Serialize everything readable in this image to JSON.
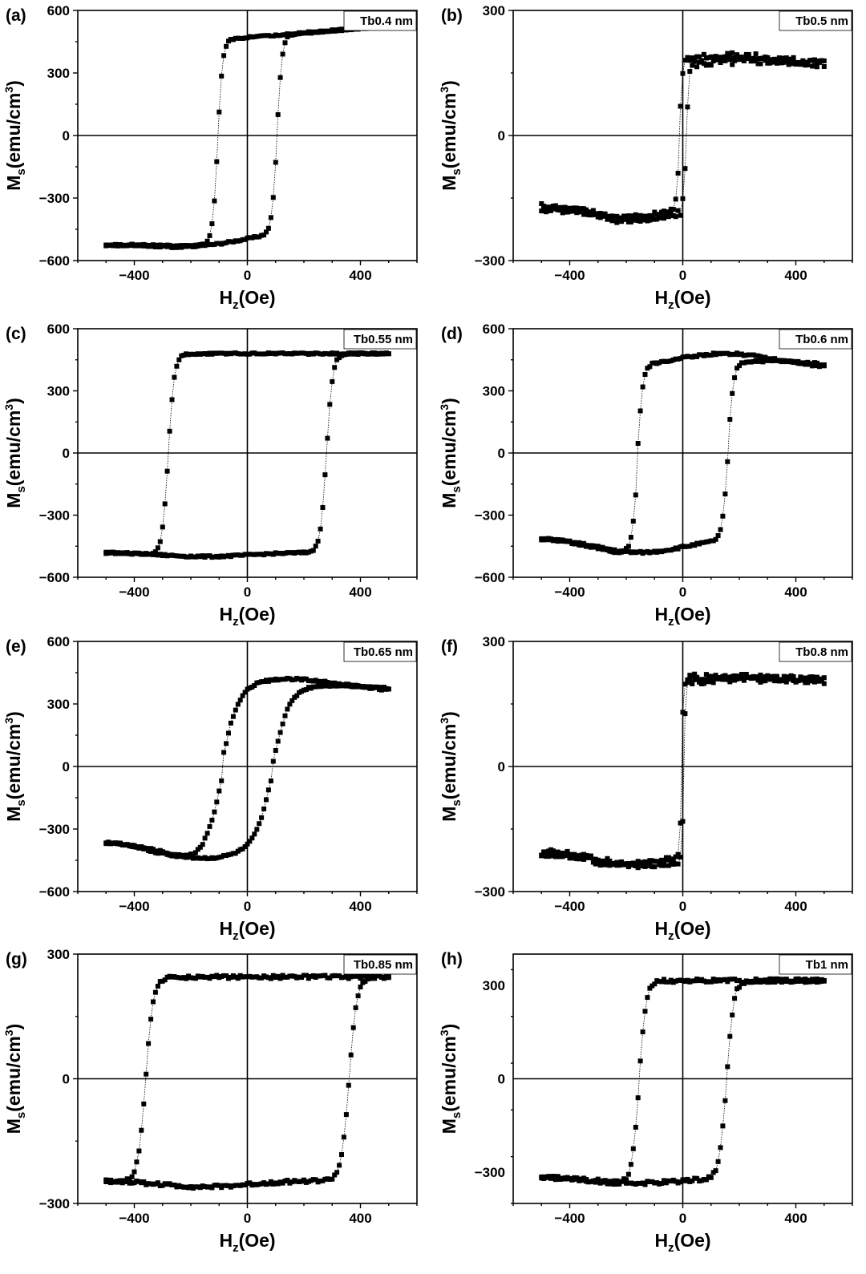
{
  "figure": {
    "colors": {
      "line": "#000000",
      "marker": "#000000",
      "background": "#ffffff"
    }
  },
  "chart_data": [
    {
      "id": "a",
      "letter": "(a)",
      "type": "scatter",
      "legend": "Tb0.4 nm",
      "xlabel": "H",
      "xlabel_sub": "z",
      "xlabel_unit": "(Oe)",
      "ylabel": "M",
      "ylabel_sub": "s",
      "ylabel_unit": "(emu/cm",
      "ylabel_sup": "3",
      "ylabel_close": ")",
      "xlim": [
        -600,
        600
      ],
      "ylim": [
        -600,
        600
      ],
      "xticks": [
        -400,
        0,
        400
      ],
      "xtick_labels": [
        "−400",
        "0",
        "400"
      ],
      "yticks": [
        -600,
        -300,
        0,
        300,
        600
      ],
      "ytick_labels": [
        "−600",
        "−300",
        "0",
        "300",
        "600"
      ],
      "loop": {
        "Ms": 470,
        "Hc": 105,
        "width": 18,
        "slope": 0.11,
        "bow": 40,
        "shift": 0,
        "jitter": 4
      }
    },
    {
      "id": "b",
      "letter": "(b)",
      "type": "scatter",
      "legend": "Tb0.5 nm",
      "xlabel": "H",
      "xlabel_sub": "z",
      "xlabel_unit": "(Oe)",
      "ylabel": "M",
      "ylabel_sub": "s",
      "ylabel_unit": "(emu/cm",
      "ylabel_sup": "3",
      "ylabel_close": ")",
      "xlim": [
        -600,
        600
      ],
      "ylim": [
        -300,
        300
      ],
      "xticks": [
        -400,
        0,
        400
      ],
      "xtick_labels": [
        "−400",
        "0",
        "400"
      ],
      "yticks": [
        -300,
        0,
        300
      ],
      "ytick_labels": [
        "−300",
        "0",
        "300"
      ],
      "loop": {
        "Ms": 170,
        "Hc": 12,
        "width": 10,
        "slope": 0.0,
        "bow": 30,
        "shift": 20,
        "jitter": 10
      }
    },
    {
      "id": "c",
      "letter": "(c)",
      "type": "scatter",
      "legend": "Tb0.55 nm",
      "xlabel": "H",
      "xlabel_sub": "z",
      "xlabel_unit": "(Oe)",
      "ylabel": "M",
      "ylabel_sub": "s",
      "ylabel_unit": "(emu/cm",
      "ylabel_sup": "3",
      "ylabel_close": ")",
      "xlim": [
        -600,
        600
      ],
      "ylim": [
        -600,
        600
      ],
      "xticks": [
        -400,
        0,
        400
      ],
      "xtick_labels": [
        "−400",
        "0",
        "400"
      ],
      "yticks": [
        -600,
        -300,
        0,
        300,
        600
      ],
      "ytick_labels": [
        "−600",
        "−300",
        "0",
        "300",
        "600"
      ],
      "loop": {
        "Ms": 480,
        "Hc": 280,
        "width": 22,
        "slope": 0.0,
        "bow": 20,
        "shift": 0,
        "jitter": 4
      }
    },
    {
      "id": "d",
      "letter": "(d)",
      "type": "scatter",
      "legend": "Tb0.6 nm",
      "xlabel": "H",
      "xlabel_sub": "z",
      "xlabel_unit": "(Oe)",
      "ylabel": "M",
      "ylabel_sub": "s",
      "ylabel_unit": "(emu/cm",
      "ylabel_sup": "3",
      "ylabel_close": ")",
      "xlim": [
        -600,
        600
      ],
      "ylim": [
        -600,
        600
      ],
      "xticks": [
        -400,
        0,
        400
      ],
      "xtick_labels": [
        "−400",
        "0",
        "400"
      ],
      "yticks": [
        -600,
        -300,
        0,
        300,
        600
      ],
      "ytick_labels": [
        "−600",
        "−300",
        "0",
        "300",
        "600"
      ],
      "loop": {
        "Ms": 410,
        "Hc": 160,
        "width": 20,
        "slope": 0.0,
        "bow": 70,
        "shift": 70,
        "jitter": 5
      }
    },
    {
      "id": "e",
      "letter": "(e)",
      "type": "scatter",
      "legend": "Tb0.65 nm",
      "xlabel": "H",
      "xlabel_sub": "z",
      "xlabel_unit": "(Oe)",
      "ylabel": "M",
      "ylabel_sub": "s",
      "ylabel_unit": "(emu/cm",
      "ylabel_sup": "3",
      "ylabel_close": ")",
      "xlim": [
        -600,
        600
      ],
      "ylim": [
        -600,
        600
      ],
      "xticks": [
        -400,
        0,
        400
      ],
      "xtick_labels": [
        "−400",
        "0",
        "400"
      ],
      "yticks": [
        -600,
        -300,
        0,
        300,
        600
      ],
      "ytick_labels": [
        "−600",
        "−300",
        "0",
        "300",
        "600"
      ],
      "loop": {
        "Ms": 360,
        "Hc": 90,
        "width": 60,
        "slope": 0.0,
        "bow": 80,
        "shift": 60,
        "jitter": 5
      }
    },
    {
      "id": "f",
      "letter": "(f)",
      "type": "scatter",
      "legend": "Tb0.8 nm",
      "xlabel": "H",
      "xlabel_sub": "z",
      "xlabel_unit": "(Oe)",
      "ylabel": "M",
      "ylabel_sub": "s",
      "ylabel_unit": "(emu/cm",
      "ylabel_sup": "3",
      "ylabel_close": ")",
      "xlim": [
        -600,
        600
      ],
      "ylim": [
        -300,
        300
      ],
      "xticks": [
        -400,
        0,
        400
      ],
      "xtick_labels": [
        "−400",
        "0",
        "400"
      ],
      "yticks": [
        -300,
        0,
        300
      ],
      "ytick_labels": [
        "−300",
        "0",
        "300"
      ],
      "loop": {
        "Ms": 205,
        "Hc": 4,
        "width": 6,
        "slope": 0.0,
        "bow": 30,
        "shift": 10,
        "jitter": 9
      }
    },
    {
      "id": "g",
      "letter": "(g)",
      "type": "scatter",
      "legend": "Tb0.85 nm",
      "xlabel": "H",
      "xlabel_sub": "z",
      "xlabel_unit": "(Oe)",
      "ylabel": "M",
      "ylabel_sub": "s",
      "ylabel_unit": "(emu/cm",
      "ylabel_sup": "3",
      "ylabel_close": ")",
      "xlim": [
        -600,
        600
      ],
      "ylim": [
        -300,
        300
      ],
      "xticks": [
        -400,
        0,
        400
      ],
      "xtick_labels": [
        "−400",
        "0",
        "400"
      ],
      "yticks": [
        -300,
        0,
        300
      ],
      "ytick_labels": [
        "−300",
        "0",
        "300"
      ],
      "loop": {
        "Ms": 245,
        "Hc": 360,
        "width": 28,
        "slope": 0.0,
        "bow": 15,
        "shift": 0,
        "jitter": 4
      }
    },
    {
      "id": "h",
      "letter": "(h)",
      "type": "scatter",
      "legend": "Tb1 nm",
      "xlabel": "H",
      "xlabel_sub": "z",
      "xlabel_unit": "(Oe)",
      "ylabel": "M",
      "ylabel_sub": "s",
      "ylabel_unit": "(emu/cm",
      "ylabel_sup": "3",
      "ylabel_close": ")",
      "xlim": [
        -600,
        600
      ],
      "ylim": [
        -400,
        400
      ],
      "xticks": [
        -400,
        0,
        400
      ],
      "xtick_labels": [
        "−400",
        "0",
        "400"
      ],
      "yticks": [
        -300,
        0,
        300
      ],
      "ytick_labels": [
        "−300",
        "0",
        "300"
      ],
      "loop": {
        "Ms": 315,
        "Hc": 155,
        "width": 25,
        "slope": 0.0,
        "bow": 20,
        "shift": 0,
        "jitter": 6
      }
    }
  ]
}
